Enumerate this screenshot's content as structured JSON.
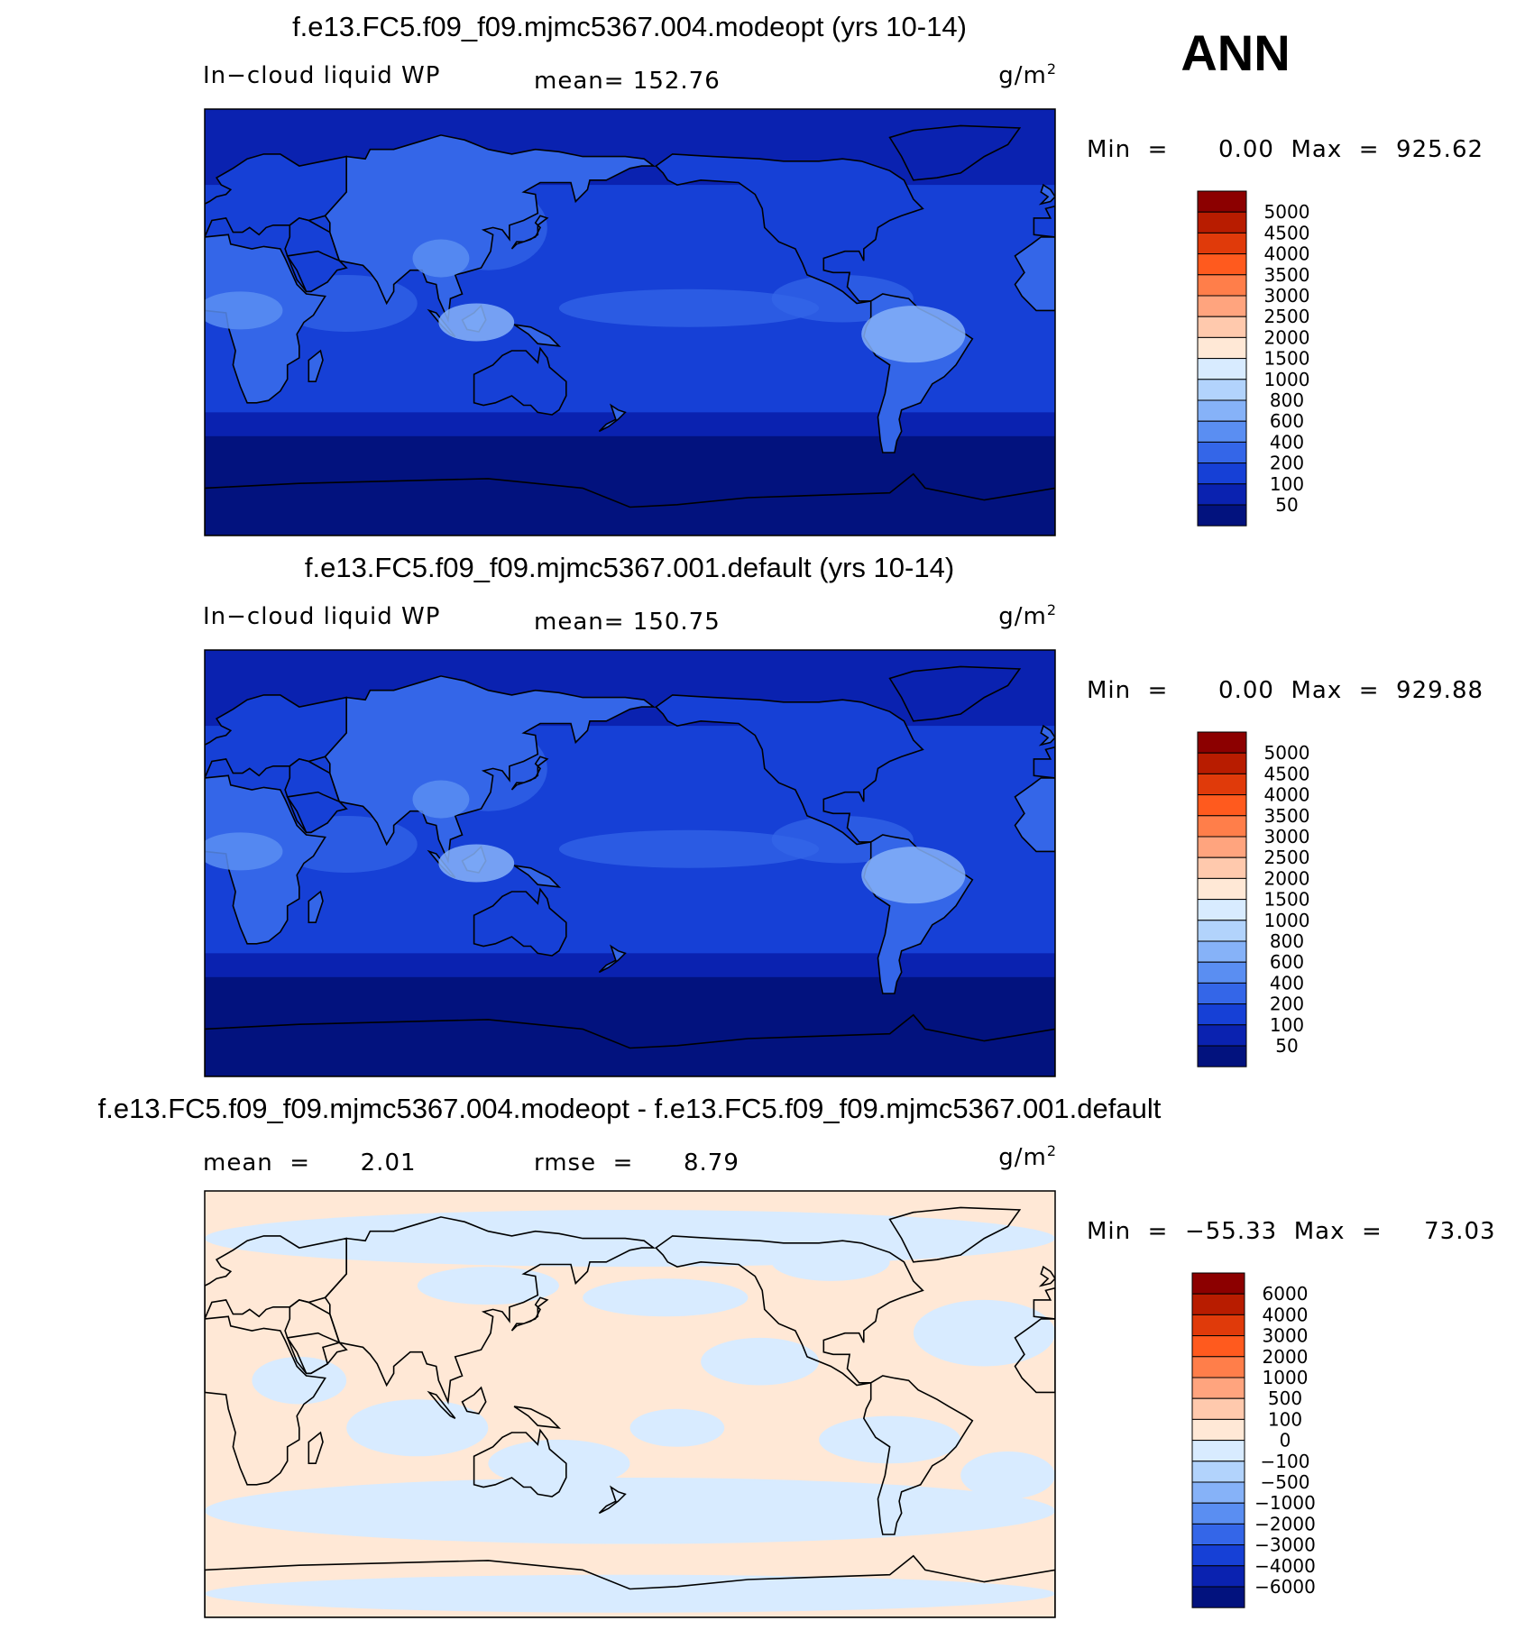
{
  "season": "ANN",
  "chart_data": [
    {
      "type": "heatmap",
      "title": "f.e13.FC5.f09_f09.mjmc5367.004.modeopt (yrs 10-14)",
      "variable_label": "In−cloud liquid WP",
      "stat_text": "mean=  152.76",
      "units_text": "g/m",
      "units_exp": "2",
      "minmax_text": "Min  =      0.00  Max  =  925.62",
      "min": 0.0,
      "max": 925.62,
      "mean": 152.76,
      "colorbar": {
        "labels": [
          "5000",
          "4500",
          "4000",
          "3500",
          "3000",
          "2500",
          "2000",
          "1500",
          "1000",
          "800",
          "600",
          "400",
          "200",
          "100",
          "50"
        ],
        "colors": [
          "#8c0000",
          "#b81c00",
          "#e03a0a",
          "#ff5a1e",
          "#ff7e4a",
          "#ffa47e",
          "#ffc9ad",
          "#ffe8d6",
          "#d8ebff",
          "#b2d3fc",
          "#86b2f8",
          "#5a8ef2",
          "#3466e8",
          "#1640d6",
          "#0a22b0",
          "#02127e"
        ]
      }
    },
    {
      "type": "heatmap",
      "title": "f.e13.FC5.f09_f09.mjmc5367.001.default (yrs 10-14)",
      "variable_label": "In−cloud liquid WP",
      "stat_text": "mean=  150.75",
      "units_text": "g/m",
      "units_exp": "2",
      "minmax_text": "Min  =      0.00  Max  =  929.88",
      "min": 0.0,
      "max": 929.88,
      "mean": 150.75,
      "colorbar": {
        "labels": [
          "5000",
          "4500",
          "4000",
          "3500",
          "3000",
          "2500",
          "2000",
          "1500",
          "1000",
          "800",
          "600",
          "400",
          "200",
          "100",
          "50"
        ],
        "colors": [
          "#8c0000",
          "#b81c00",
          "#e03a0a",
          "#ff5a1e",
          "#ff7e4a",
          "#ffa47e",
          "#ffc9ad",
          "#ffe8d6",
          "#d8ebff",
          "#b2d3fc",
          "#86b2f8",
          "#5a8ef2",
          "#3466e8",
          "#1640d6",
          "#0a22b0",
          "#02127e"
        ]
      }
    },
    {
      "type": "heatmap",
      "title": "f.e13.FC5.f09_f09.mjmc5367.004.modeopt - f.e13.FC5.f09_f09.mjmc5367.001.default",
      "stat_text": "mean  =      2.01",
      "rmse_text": "rmse  =      8.79",
      "units_text": "g/m",
      "units_exp": "2",
      "minmax_text": "Min  =  −55.33  Max  =     73.03",
      "min": -55.33,
      "max": 73.03,
      "mean": 2.01,
      "rmse": 8.79,
      "colorbar": {
        "labels": [
          "6000",
          "4000",
          "3000",
          "2000",
          "1000",
          "500",
          "100",
          "0",
          "−100",
          "−500",
          "−1000",
          "−2000",
          "−3000",
          "−4000",
          "−6000"
        ],
        "colors": [
          "#8c0000",
          "#b81c00",
          "#e03a0a",
          "#ff5a1e",
          "#ff7e4a",
          "#ffa47e",
          "#ffc9ad",
          "#ffe8d6",
          "#d8ebff",
          "#b2d3fc",
          "#86b2f8",
          "#5a8ef2",
          "#3466e8",
          "#1640d6",
          "#0a22b0",
          "#02127e"
        ]
      }
    }
  ]
}
